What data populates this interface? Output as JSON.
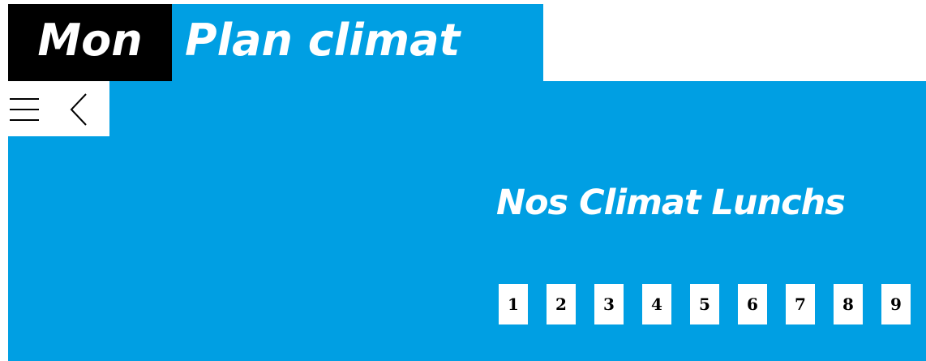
{
  "header": {
    "logo_part1": "Mon",
    "logo_part2": "Plan climat"
  },
  "title": "Nos Climat Lunchs",
  "pagination": [
    "1",
    "2",
    "3",
    "4",
    "5",
    "6",
    "7",
    "8",
    "9"
  ]
}
